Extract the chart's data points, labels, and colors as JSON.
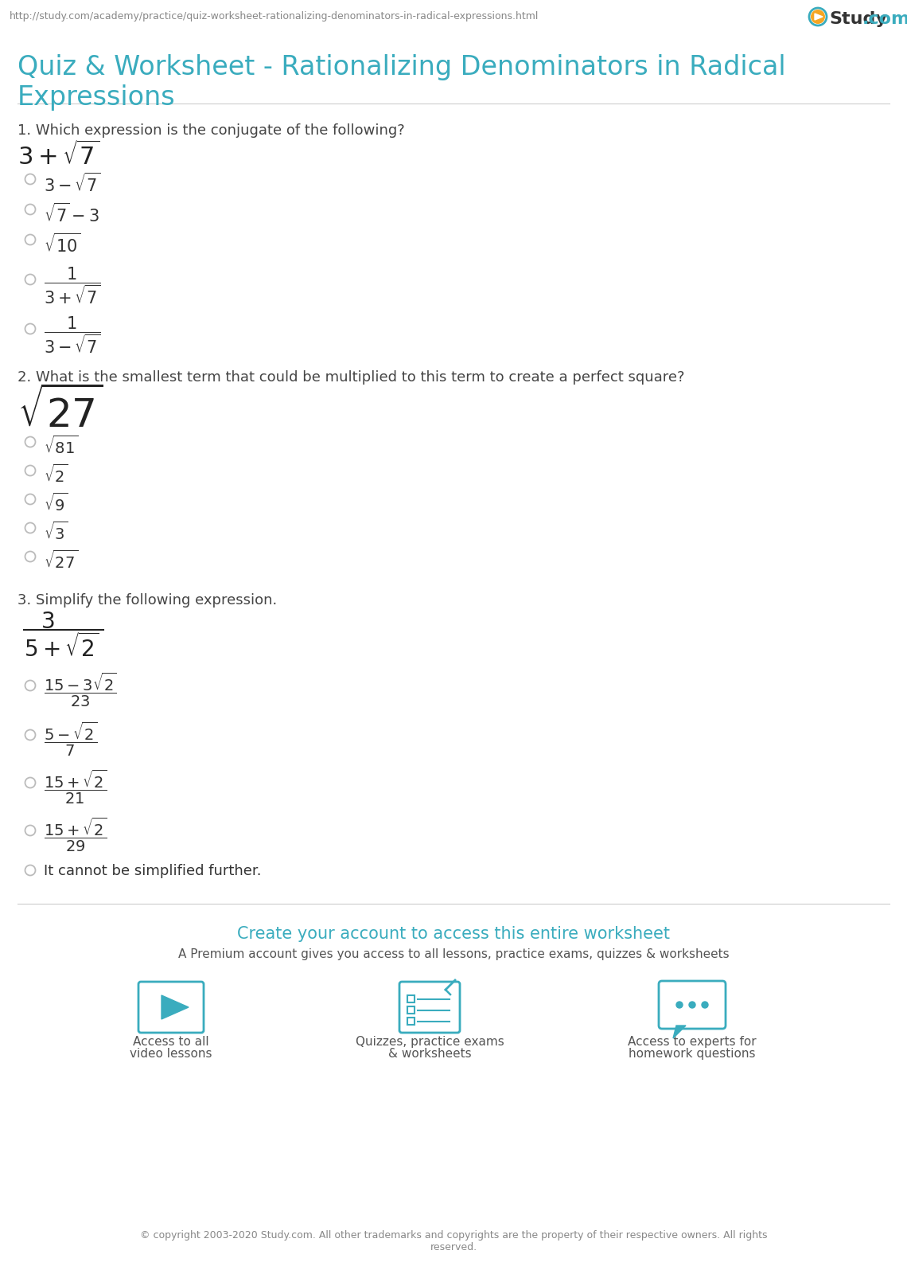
{
  "bg_color": "#ffffff",
  "header_url": "http://study.com/academy/practice/quiz-worksheet-rationalizing-denominators-in-radical-expressions.html",
  "header_url_color": "#888888",
  "title_color": "#3aacbe",
  "title_line1": "Quiz & Worksheet - Rationalizing Denominators in Radical",
  "title_line2": "Expressions",
  "title_fontsize": 24,
  "divider_color": "#cccccc",
  "question_color": "#444444",
  "answer_color": "#333333",
  "radio_color": "#bbbbbb",
  "cta_title_color": "#3aacbe",
  "cta_title": "Create your account to access this entire worksheet",
  "cta_subtitle": "A Premium account gives you access to all lessons, practice exams, quizzes & worksheets",
  "footer_text": "© copyright 2003-2020 Study.com. All other trademarks and copyrights are the property of their respective owners. All rights\nreserved.",
  "icon_color": "#3aacbe",
  "icon_label_color": "#555555"
}
